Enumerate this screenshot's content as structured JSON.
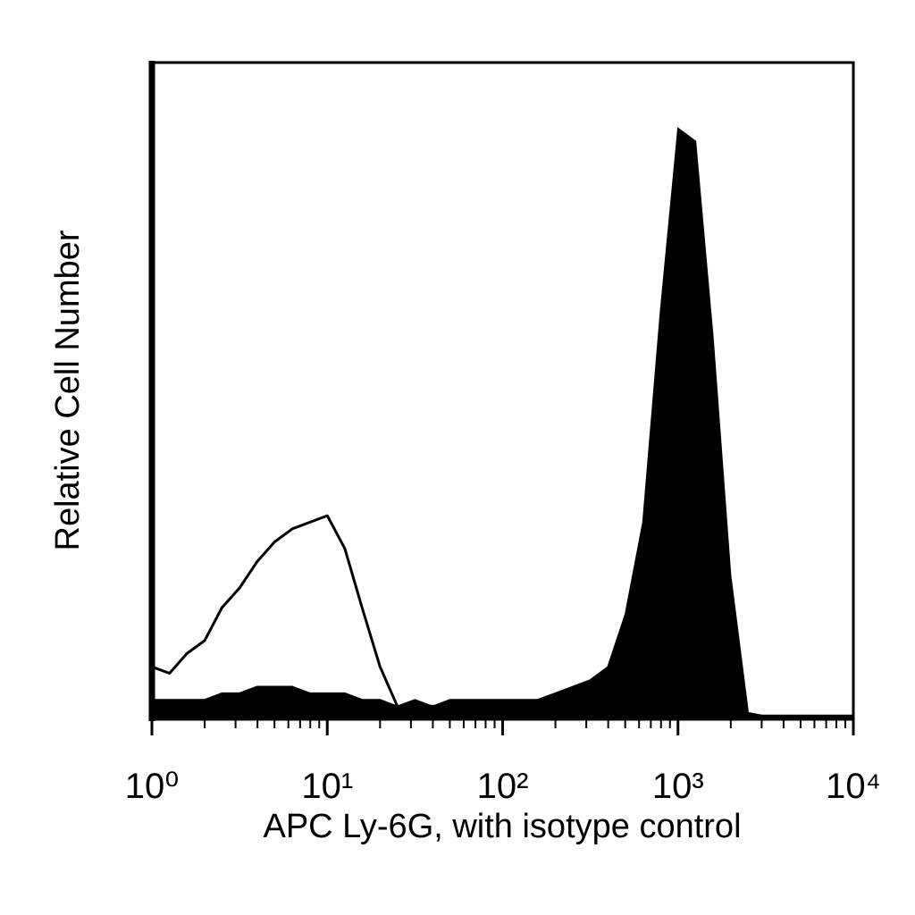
{
  "chart_data": {
    "type": "histogram-overlay",
    "x_label": "APC Ly-6G, with isotype control",
    "y_label": "Relative Cell Number",
    "xscale": "log",
    "xlim": [
      1,
      10000
    ],
    "ylim": [
      0,
      100
    ],
    "xticks": [
      {
        "value": 1,
        "label": "10⁰"
      },
      {
        "value": 10,
        "label": "10¹"
      },
      {
        "value": 100,
        "label": "10²"
      },
      {
        "value": 1000,
        "label": "10³"
      },
      {
        "value": 10000,
        "label": "10⁴"
      }
    ],
    "xminorticks": [
      2,
      3,
      4,
      5,
      6,
      7,
      8,
      9,
      20,
      30,
      40,
      50,
      60,
      70,
      80,
      90,
      200,
      300,
      400,
      500,
      600,
      700,
      800,
      900,
      2000,
      3000,
      4000,
      5000,
      6000,
      7000,
      8000,
      9000
    ],
    "x": [
      1,
      1.26,
      1.58,
      2,
      2.51,
      3.16,
      3.98,
      5.01,
      6.31,
      7.94,
      10,
      12.6,
      15.8,
      20,
      25.1,
      31.6,
      39.8,
      50.1,
      63.1,
      79.4,
      100,
      126,
      158,
      200,
      251,
      316,
      398,
      501,
      631,
      794,
      1000,
      1259,
      1585,
      1995,
      2512,
      3162,
      3981,
      5012,
      6310,
      7943,
      10000
    ],
    "series": [
      {
        "color": "#000000",
        "filled": true,
        "values": [
          3,
          3,
          3,
          3,
          4,
          4,
          5,
          5,
          5,
          4,
          4,
          4,
          3,
          3,
          2,
          3,
          2,
          3,
          3,
          3,
          3,
          3,
          3,
          4,
          5,
          6,
          8,
          16,
          30,
          62,
          90,
          88,
          58,
          22,
          1,
          0.5,
          0.5,
          0.5,
          0.5,
          0.5,
          0.5
        ]
      },
      {
        "color": "#000000",
        "filled": false,
        "values": [
          8,
          7,
          10,
          12,
          17,
          20,
          24,
          27,
          29,
          30,
          31,
          26,
          17,
          8,
          2,
          2,
          2,
          1.5,
          1.5,
          1.5,
          1.5,
          1.5,
          2,
          2,
          2,
          2,
          3,
          3,
          3,
          2,
          2,
          2,
          1.5,
          1,
          0.5,
          0.5,
          0.5,
          0.5,
          0.5,
          0.5,
          0.5
        ]
      }
    ]
  }
}
